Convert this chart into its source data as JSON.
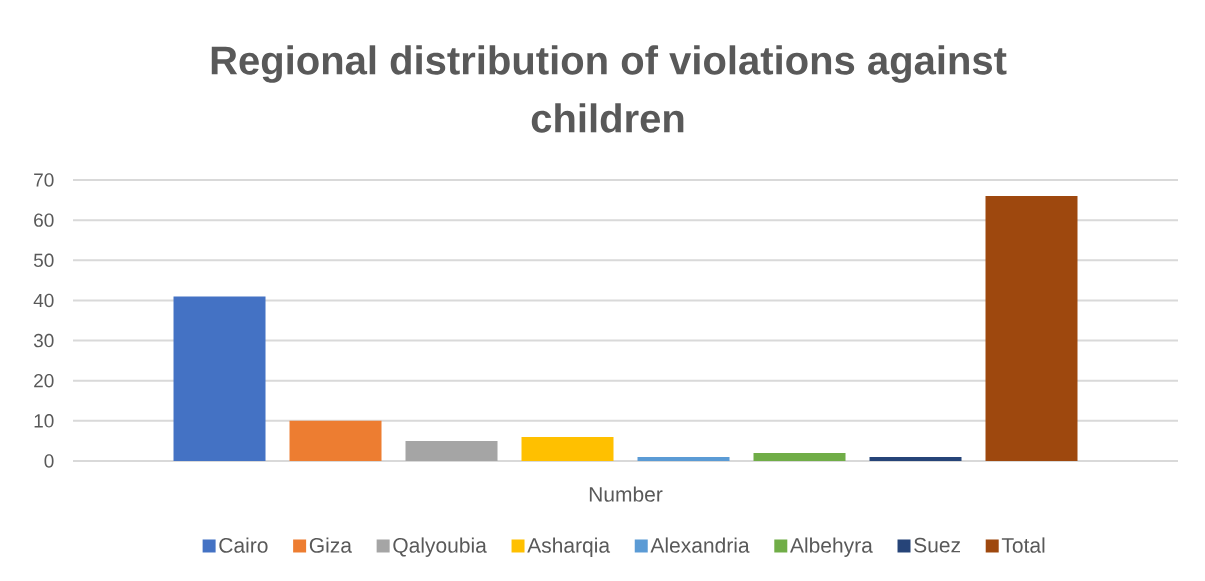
{
  "chart_data": {
    "type": "bar",
    "title": "Regional distribution of violations against children",
    "categories": [
      "Number"
    ],
    "series": [
      {
        "name": "Cairo",
        "color": "#4472c4",
        "values": [
          41
        ]
      },
      {
        "name": "Giza",
        "color": "#ed7d31",
        "values": [
          10
        ]
      },
      {
        "name": "Qalyoubia",
        "color": "#a5a5a5",
        "values": [
          5
        ]
      },
      {
        "name": "Asharqia",
        "color": "#ffc000",
        "values": [
          6
        ]
      },
      {
        "name": "Alexandria",
        "color": "#5b9bd5",
        "values": [
          1
        ]
      },
      {
        "name": "Albehyra",
        "color": "#70ad47",
        "values": [
          2
        ]
      },
      {
        "name": "Suez",
        "color": "#264478",
        "values": [
          1
        ]
      },
      {
        "name": "Total",
        "color": "#9e480e",
        "values": [
          66
        ]
      }
    ],
    "ylim": [
      0,
      70
    ],
    "yticks": [
      0,
      10,
      20,
      30,
      40,
      50,
      60,
      70
    ],
    "grid": "y",
    "legend": "bottom"
  }
}
